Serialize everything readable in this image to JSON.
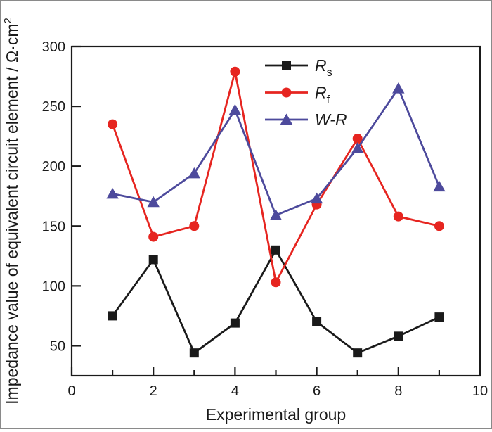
{
  "chart_data": {
    "type": "line",
    "title": "",
    "xlabel": "Experimental group",
    "ylabel": "Impedance value of equivalent circuit element / Ω·cm",
    "ylabel_superscript": "2",
    "xlim": [
      0,
      10
    ],
    "ylim": [
      25,
      300
    ],
    "x_major_ticks": [
      0,
      2,
      4,
      6,
      8,
      10
    ],
    "x_minor_ticks": [
      1,
      3,
      5,
      7,
      9
    ],
    "y_major_ticks": [
      50,
      100,
      150,
      200,
      250,
      300
    ],
    "grid": false,
    "legend_position": "upper-center",
    "x": [
      1,
      2,
      3,
      4,
      5,
      6,
      7,
      8,
      9
    ],
    "series": [
      {
        "name": "Rs",
        "legend_main": "R",
        "legend_sub": "s",
        "marker": "square",
        "color": "#1a1a1a",
        "values": [
          75,
          122,
          44,
          69,
          130,
          70,
          44,
          58,
          74
        ]
      },
      {
        "name": "Rf",
        "legend_main": "R",
        "legend_sub": "f",
        "marker": "circle",
        "color": "#e62520",
        "values": [
          235,
          141,
          150,
          279,
          103,
          168,
          223,
          158,
          150
        ]
      },
      {
        "name": "W-R",
        "legend_main": "W-R",
        "legend_sub": "",
        "marker": "triangle",
        "color": "#4d4a9c",
        "values": [
          177,
          170,
          194,
          247,
          159,
          173,
          215,
          265,
          183
        ]
      }
    ]
  }
}
